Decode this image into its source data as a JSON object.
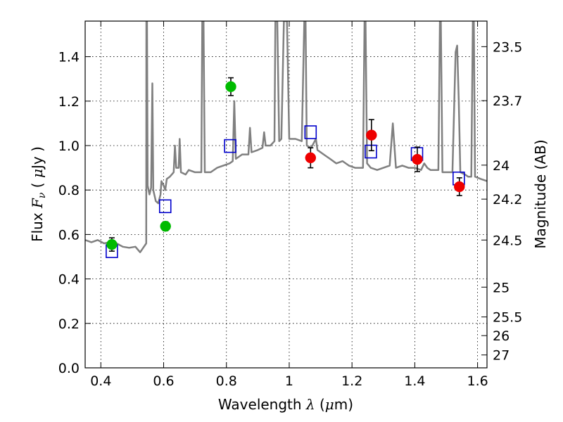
{
  "chart_data": {
    "type": "scatter",
    "xlabel": {
      "prefix": "Wavelength  ",
      "symbol": "λ",
      "suffix": " (",
      "unit_symbol": "μ",
      "unit_tail": "m)"
    },
    "ylabel": {
      "prefix": "Flux  ",
      "symbol": "F",
      "subscript": "ν",
      "middle": "  ( ",
      "unit_symbol": "μ",
      "unit_tail": "Jy )"
    },
    "y2label": "Magnitude (AB)",
    "xlim": [
      0.35,
      1.63
    ],
    "ylim": [
      0.0,
      1.56
    ],
    "grid": true,
    "x_ticks": [
      "0.4",
      "0.6",
      "0.8",
      "1",
      "1.2",
      "1.4",
      "1.6"
    ],
    "y_ticks": [
      "0.0",
      "0.2",
      "0.4",
      "0.6",
      "0.8",
      "1.0",
      "1.2",
      "1.4"
    ],
    "y2_ticks": [
      {
        "label": "23.5",
        "flux": 1.445
      },
      {
        "label": "23.7",
        "flux": 1.202
      },
      {
        "label": "24",
        "flux": 0.912
      },
      {
        "label": "24.2",
        "flux": 0.759
      },
      {
        "label": "24.5",
        "flux": 0.575
      },
      {
        "label": "25",
        "flux": 0.363
      },
      {
        "label": "25.5",
        "flux": 0.229
      },
      {
        "label": "26",
        "flux": 0.145
      },
      {
        "label": "27",
        "flux": 0.058
      }
    ],
    "series": [
      {
        "kind": "model_spectrum",
        "color": "#808080",
        "points": [
          [
            0.35,
            0.575
          ],
          [
            0.37,
            0.565
          ],
          [
            0.39,
            0.575
          ],
          [
            0.41,
            0.56
          ],
          [
            0.43,
            0.565
          ],
          [
            0.45,
            0.56
          ],
          [
            0.47,
            0.545
          ],
          [
            0.49,
            0.54
          ],
          [
            0.51,
            0.545
          ],
          [
            0.525,
            0.52
          ],
          [
            0.535,
            0.54
          ],
          [
            0.5445,
            0.56
          ],
          [
            0.545,
            1.56
          ],
          [
            0.547,
            1.56
          ],
          [
            0.549,
            0.82
          ],
          [
            0.555,
            0.78
          ],
          [
            0.56,
            0.81
          ],
          [
            0.564,
            1.28
          ],
          [
            0.567,
            0.8
          ],
          [
            0.575,
            0.75
          ],
          [
            0.583,
            0.74
          ],
          [
            0.59,
            0.78
          ],
          [
            0.593,
            0.84
          ],
          [
            0.6,
            0.82
          ],
          [
            0.605,
            0.8
          ],
          [
            0.61,
            0.85
          ],
          [
            0.62,
            0.86
          ],
          [
            0.632,
            0.88
          ],
          [
            0.636,
            1.0
          ],
          [
            0.64,
            0.9
          ],
          [
            0.648,
            0.9
          ],
          [
            0.651,
            1.03
          ],
          [
            0.655,
            0.88
          ],
          [
            0.67,
            0.87
          ],
          [
            0.68,
            0.89
          ],
          [
            0.7,
            0.88
          ],
          [
            0.72,
            0.88
          ],
          [
            0.723,
            1.56
          ],
          [
            0.727,
            1.56
          ],
          [
            0.731,
            0.88
          ],
          [
            0.75,
            0.88
          ],
          [
            0.77,
            0.9
          ],
          [
            0.79,
            0.91
          ],
          [
            0.81,
            0.92
          ],
          [
            0.82,
            0.93
          ],
          [
            0.825,
            1.2
          ],
          [
            0.83,
            0.94
          ],
          [
            0.85,
            0.96
          ],
          [
            0.87,
            0.96
          ],
          [
            0.875,
            1.08
          ],
          [
            0.88,
            0.97
          ],
          [
            0.9,
            0.98
          ],
          [
            0.915,
            0.99
          ],
          [
            0.92,
            1.06
          ],
          [
            0.925,
            1.0
          ],
          [
            0.94,
            1.0
          ],
          [
            0.953,
            1.02
          ],
          [
            0.956,
            1.56
          ],
          [
            0.962,
            1.56
          ],
          [
            0.968,
            1.02
          ],
          [
            0.975,
            1.03
          ],
          [
            0.983,
            1.56
          ],
          [
            0.993,
            1.56
          ],
          [
            1.0,
            1.03
          ],
          [
            1.02,
            1.03
          ],
          [
            1.04,
            1.02
          ],
          [
            1.048,
            1.56
          ],
          [
            1.052,
            1.56
          ],
          [
            1.056,
            1.0
          ],
          [
            1.07,
            0.99
          ],
          [
            1.085,
            1.03
          ],
          [
            1.09,
            0.98
          ],
          [
            1.11,
            0.96
          ],
          [
            1.13,
            0.94
          ],
          [
            1.15,
            0.92
          ],
          [
            1.17,
            0.93
          ],
          [
            1.19,
            0.91
          ],
          [
            1.21,
            0.9
          ],
          [
            1.235,
            0.9
          ],
          [
            1.24,
            1.56
          ],
          [
            1.243,
            1.56
          ],
          [
            1.248,
            0.92
          ],
          [
            1.26,
            0.9
          ],
          [
            1.28,
            0.89
          ],
          [
            1.3,
            0.9
          ],
          [
            1.32,
            0.91
          ],
          [
            1.33,
            1.1
          ],
          [
            1.34,
            0.9
          ],
          [
            1.36,
            0.91
          ],
          [
            1.38,
            0.9
          ],
          [
            1.4,
            0.9
          ],
          [
            1.42,
            0.89
          ],
          [
            1.43,
            0.92
          ],
          [
            1.44,
            0.9
          ],
          [
            1.45,
            0.89
          ],
          [
            1.475,
            0.89
          ],
          [
            1.48,
            1.56
          ],
          [
            1.483,
            1.56
          ],
          [
            1.488,
            0.88
          ],
          [
            1.5,
            0.88
          ],
          [
            1.51,
            0.88
          ],
          [
            1.52,
            0.88
          ],
          [
            1.53,
            1.42
          ],
          [
            1.535,
            1.45
          ],
          [
            1.54,
            1.2
          ],
          [
            1.545,
            0.88
          ],
          [
            1.56,
            0.87
          ],
          [
            1.57,
            0.86
          ],
          [
            1.58,
            0.86
          ],
          [
            1.585,
            1.56
          ],
          [
            1.588,
            1.56
          ],
          [
            1.592,
            0.86
          ],
          [
            1.61,
            0.85
          ],
          [
            1.63,
            0.84
          ]
        ]
      },
      {
        "kind": "model_photometry",
        "color": "#0000cc",
        "points": [
          [
            0.435,
            0.525
          ],
          [
            0.605,
            0.727
          ],
          [
            0.812,
            0.998
          ],
          [
            1.068,
            1.06
          ],
          [
            1.26,
            0.973
          ],
          [
            1.407,
            0.962
          ],
          [
            1.54,
            0.852
          ]
        ]
      },
      {
        "kind": "observed_green",
        "color": "#00bb00",
        "points": [
          [
            0.435,
            0.555,
            0.03
          ],
          [
            0.606,
            0.637,
            0.02
          ],
          [
            0.814,
            1.265,
            0.04
          ]
        ]
      },
      {
        "kind": "observed_red",
        "color": "#ee0000",
        "points": [
          [
            1.068,
            0.945,
            0.045
          ],
          [
            1.262,
            1.047,
            0.07
          ],
          [
            1.408,
            0.938,
            0.055
          ],
          [
            1.542,
            0.815,
            0.04
          ]
        ]
      }
    ]
  }
}
